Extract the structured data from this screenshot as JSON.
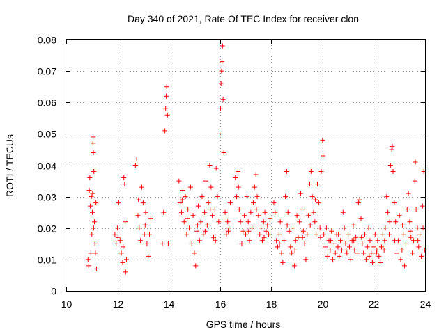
{
  "chart_data": {
    "type": "scatter",
    "title": "Day 340 of 2021, Rate Of TEC Index for receiver clon",
    "xlabel": "GPS time / hours",
    "ylabel": "ROTI / TECUs",
    "xlim": [
      10,
      24
    ],
    "ylim": [
      0,
      0.08
    ],
    "x_ticks": [
      10,
      12,
      14,
      16,
      18,
      20,
      22,
      24
    ],
    "x_tick_labels": [
      "10",
      "12",
      "14",
      "16",
      "18",
      "20",
      "22",
      "24"
    ],
    "y_ticks": [
      0,
      0.01,
      0.02,
      0.03,
      0.04,
      0.05,
      0.06,
      0.07,
      0.08
    ],
    "y_tick_labels": [
      "0",
      "0.01",
      "0.02",
      "0.03",
      "0.04",
      "0.05",
      "0.06",
      "0.07",
      "0.08"
    ],
    "grid": true,
    "marker": "+",
    "series": [
      {
        "name": "ROTI",
        "color": "#ff0000",
        "points": [
          [
            10.85,
            0.01
          ],
          [
            10.88,
            0.008
          ],
          [
            10.9,
            0.032
          ],
          [
            10.92,
            0.036
          ],
          [
            10.94,
            0.027
          ],
          [
            10.96,
            0.012
          ],
          [
            10.98,
            0.03
          ],
          [
            11.0,
            0.018
          ],
          [
            11.02,
            0.025
          ],
          [
            11.04,
            0.047
          ],
          [
            11.05,
            0.049
          ],
          [
            11.06,
            0.044
          ],
          [
            11.08,
            0.038
          ],
          [
            11.1,
            0.022
          ],
          [
            11.12,
            0.015
          ],
          [
            11.14,
            0.012
          ],
          [
            11.16,
            0.028
          ],
          [
            11.18,
            0.007
          ],
          [
            11.9,
            0.018
          ],
          [
            11.95,
            0.015
          ],
          [
            12.0,
            0.02
          ],
          [
            12.05,
            0.028
          ],
          [
            12.1,
            0.016
          ],
          [
            12.15,
            0.012
          ],
          [
            12.2,
            0.009
          ],
          [
            12.25,
            0.036
          ],
          [
            12.28,
            0.034
          ],
          [
            12.3,
            0.022
          ],
          [
            12.32,
            0.006
          ],
          [
            12.35,
            0.01
          ],
          [
            12.7,
            0.04
          ],
          [
            12.75,
            0.042
          ],
          [
            12.8,
            0.024
          ],
          [
            12.85,
            0.02
          ],
          [
            12.9,
            0.016
          ],
          [
            12.95,
            0.033
          ],
          [
            13.0,
            0.028
          ],
          [
            13.05,
            0.018
          ],
          [
            13.1,
            0.025
          ],
          [
            13.15,
            0.015
          ],
          [
            13.2,
            0.011
          ],
          [
            13.25,
            0.018
          ],
          [
            13.3,
            0.023
          ],
          [
            13.75,
            0.015
          ],
          [
            13.8,
            0.025
          ],
          [
            13.85,
            0.051
          ],
          [
            13.88,
            0.058
          ],
          [
            13.9,
            0.062
          ],
          [
            13.92,
            0.065
          ],
          [
            13.95,
            0.056
          ],
          [
            13.98,
            0.015
          ],
          [
            14.4,
            0.035
          ],
          [
            14.45,
            0.028
          ],
          [
            14.5,
            0.025
          ],
          [
            14.55,
            0.032
          ],
          [
            14.6,
            0.022
          ],
          [
            14.65,
            0.03
          ],
          [
            14.7,
            0.018
          ],
          [
            14.75,
            0.026
          ],
          [
            14.8,
            0.02
          ],
          [
            14.85,
            0.033
          ],
          [
            14.9,
            0.015
          ],
          [
            14.95,
            0.024
          ],
          [
            15.0,
            0.012
          ],
          [
            15.05,
            0.008
          ],
          [
            15.1,
            0.019
          ],
          [
            15.15,
            0.027
          ],
          [
            15.2,
            0.016
          ],
          [
            15.25,
            0.022
          ],
          [
            15.3,
            0.03
          ],
          [
            15.35,
            0.018
          ],
          [
            15.4,
            0.025
          ],
          [
            15.45,
            0.035
          ],
          [
            15.5,
            0.021
          ],
          [
            15.55,
            0.028
          ],
          [
            15.6,
            0.04
          ],
          [
            15.65,
            0.033
          ],
          [
            15.7,
            0.024
          ],
          [
            15.75,
            0.017
          ],
          [
            15.8,
            0.026
          ],
          [
            15.85,
            0.039
          ],
          [
            15.9,
            0.03
          ],
          [
            15.95,
            0.022
          ],
          [
            16.0,
            0.05
          ],
          [
            16.02,
            0.058
          ],
          [
            16.04,
            0.066
          ],
          [
            16.06,
            0.07
          ],
          [
            16.08,
            0.073
          ],
          [
            16.1,
            0.078
          ],
          [
            16.12,
            0.061
          ],
          [
            16.15,
            0.044
          ],
          [
            16.2,
            0.025
          ],
          [
            16.25,
            0.018
          ],
          [
            16.3,
            0.022
          ],
          [
            16.35,
            0.02
          ],
          [
            16.4,
            0.028
          ],
          [
            16.6,
            0.036
          ],
          [
            16.65,
            0.03
          ],
          [
            16.7,
            0.038
          ],
          [
            16.75,
            0.026
          ],
          [
            16.8,
            0.022
          ],
          [
            16.85,
            0.015
          ],
          [
            16.9,
            0.019
          ],
          [
            16.95,
            0.024
          ],
          [
            17.0,
            0.018
          ],
          [
            17.05,
            0.03
          ],
          [
            17.1,
            0.022
          ],
          [
            17.15,
            0.016
          ],
          [
            17.2,
            0.025
          ],
          [
            17.25,
            0.02
          ],
          [
            17.3,
            0.028
          ],
          [
            17.35,
            0.033
          ],
          [
            17.4,
            0.037
          ],
          [
            17.45,
            0.03
          ],
          [
            17.5,
            0.024
          ],
          [
            17.55,
            0.018
          ],
          [
            17.6,
            0.02
          ],
          [
            17.65,
            0.016
          ],
          [
            17.7,
            0.022
          ],
          [
            17.75,
            0.025
          ],
          [
            17.8,
            0.019
          ],
          [
            17.85,
            0.021
          ],
          [
            17.9,
            0.018
          ],
          [
            17.95,
            0.023
          ],
          [
            18.1,
            0.028
          ],
          [
            18.15,
            0.025
          ],
          [
            18.2,
            0.016
          ],
          [
            18.25,
            0.014
          ],
          [
            18.3,
            0.018
          ],
          [
            18.35,
            0.022
          ],
          [
            18.4,
            0.012
          ],
          [
            18.45,
            0.009
          ],
          [
            18.5,
            0.016
          ],
          [
            18.55,
            0.03
          ],
          [
            18.6,
            0.038
          ],
          [
            18.65,
            0.025
          ],
          [
            18.7,
            0.019
          ],
          [
            18.75,
            0.014
          ],
          [
            18.8,
            0.012
          ],
          [
            18.85,
            0.02
          ],
          [
            18.9,
            0.008
          ],
          [
            18.95,
            0.016
          ],
          [
            19.0,
            0.024
          ],
          [
            19.05,
            0.017
          ],
          [
            19.1,
            0.022
          ],
          [
            19.15,
            0.031
          ],
          [
            19.2,
            0.026
          ],
          [
            19.25,
            0.019
          ],
          [
            19.3,
            0.015
          ],
          [
            19.35,
            0.01
          ],
          [
            19.4,
            0.018
          ],
          [
            19.45,
            0.024
          ],
          [
            19.5,
            0.034
          ],
          [
            19.55,
            0.038
          ],
          [
            19.6,
            0.03
          ],
          [
            19.65,
            0.025
          ],
          [
            19.7,
            0.022
          ],
          [
            19.75,
            0.018
          ],
          [
            19.8,
            0.034
          ],
          [
            19.85,
            0.028
          ],
          [
            19.9,
            0.02
          ],
          [
            19.95,
            0.038
          ],
          [
            20.0,
            0.048
          ],
          [
            20.02,
            0.043
          ],
          [
            20.05,
            0.018
          ],
          [
            20.1,
            0.014
          ],
          [
            20.15,
            0.02
          ],
          [
            20.2,
            0.011
          ],
          [
            20.25,
            0.016
          ],
          [
            20.3,
            0.013
          ],
          [
            20.35,
            0.019
          ],
          [
            20.4,
            0.01
          ],
          [
            20.45,
            0.015
          ],
          [
            20.5,
            0.012
          ],
          [
            20.55,
            0.018
          ],
          [
            20.6,
            0.014
          ],
          [
            20.65,
            0.011
          ],
          [
            20.7,
            0.016
          ],
          [
            20.75,
            0.013
          ],
          [
            20.8,
            0.025
          ],
          [
            20.85,
            0.02
          ],
          [
            20.9,
            0.015
          ],
          [
            20.95,
            0.012
          ],
          [
            21.0,
            0.018
          ],
          [
            21.05,
            0.014
          ],
          [
            21.1,
            0.01
          ],
          [
            21.15,
            0.016
          ],
          [
            21.2,
            0.021
          ],
          [
            21.25,
            0.013
          ],
          [
            21.3,
            0.017
          ],
          [
            21.35,
            0.012
          ],
          [
            21.4,
            0.028
          ],
          [
            21.45,
            0.029
          ],
          [
            21.5,
            0.023
          ],
          [
            21.55,
            0.015
          ],
          [
            21.6,
            0.012
          ],
          [
            21.65,
            0.018
          ],
          [
            21.7,
            0.01
          ],
          [
            21.75,
            0.014
          ],
          [
            21.8,
            0.02
          ],
          [
            21.85,
            0.016
          ],
          [
            21.9,
            0.012
          ],
          [
            21.95,
            0.009
          ],
          [
            22.0,
            0.014
          ],
          [
            22.05,
            0.018
          ],
          [
            22.1,
            0.012
          ],
          [
            22.15,
            0.016
          ],
          [
            22.2,
            0.011
          ],
          [
            22.25,
            0.009
          ],
          [
            22.3,
            0.014
          ],
          [
            22.35,
            0.018
          ],
          [
            22.4,
            0.013
          ],
          [
            22.45,
            0.02
          ],
          [
            22.5,
            0.03
          ],
          [
            22.55,
            0.025
          ],
          [
            22.6,
            0.018
          ],
          [
            22.65,
            0.04
          ],
          [
            22.7,
            0.045
          ],
          [
            22.72,
            0.046
          ],
          [
            22.75,
            0.038
          ],
          [
            22.8,
            0.028
          ],
          [
            22.85,
            0.022
          ],
          [
            22.9,
            0.012
          ],
          [
            22.95,
            0.016
          ],
          [
            23.0,
            0.024
          ],
          [
            23.05,
            0.01
          ],
          [
            23.1,
            0.013
          ],
          [
            23.15,
            0.018
          ],
          [
            23.2,
            0.008
          ],
          [
            23.25,
            0.015
          ],
          [
            23.3,
            0.026
          ],
          [
            23.35,
            0.031
          ],
          [
            23.4,
            0.022
          ],
          [
            23.45,
            0.017
          ],
          [
            23.5,
            0.012
          ],
          [
            23.55,
            0.016
          ],
          [
            23.6,
            0.035
          ],
          [
            23.62,
            0.041
          ],
          [
            23.65,
            0.026
          ],
          [
            23.7,
            0.02
          ],
          [
            23.75,
            0.014
          ],
          [
            23.8,
            0.018
          ],
          [
            23.85,
            0.011
          ],
          [
            23.9,
            0.027
          ],
          [
            23.95,
            0.038
          ],
          [
            23.98,
            0.013
          ],
          [
            11.03,
            0.031
          ],
          [
            11.07,
            0.02
          ],
          [
            12.02,
            0.017
          ],
          [
            12.22,
            0.014
          ],
          [
            12.82,
            0.029
          ],
          [
            13.08,
            0.021
          ],
          [
            14.52,
            0.029
          ],
          [
            14.72,
            0.023
          ],
          [
            15.12,
            0.021
          ],
          [
            15.42,
            0.019
          ],
          [
            15.62,
            0.026
          ],
          [
            15.82,
            0.016
          ],
          [
            16.32,
            0.019
          ],
          [
            16.72,
            0.033
          ],
          [
            17.12,
            0.019
          ],
          [
            17.42,
            0.026
          ],
          [
            17.72,
            0.017
          ],
          [
            18.32,
            0.015
          ],
          [
            18.62,
            0.021
          ],
          [
            18.92,
            0.013
          ],
          [
            19.22,
            0.017
          ],
          [
            19.52,
            0.021
          ],
          [
            19.72,
            0.029
          ],
          [
            19.92,
            0.017
          ],
          [
            20.32,
            0.016
          ],
          [
            20.62,
            0.018
          ],
          [
            20.92,
            0.013
          ],
          [
            21.22,
            0.016
          ],
          [
            21.52,
            0.017
          ],
          [
            21.82,
            0.011
          ],
          [
            22.12,
            0.013
          ],
          [
            22.42,
            0.016
          ],
          [
            22.62,
            0.022
          ],
          [
            22.82,
            0.016
          ],
          [
            23.12,
            0.021
          ],
          [
            23.42,
            0.019
          ],
          [
            23.72,
            0.016
          ],
          [
            23.92,
            0.02
          ]
        ]
      }
    ]
  }
}
